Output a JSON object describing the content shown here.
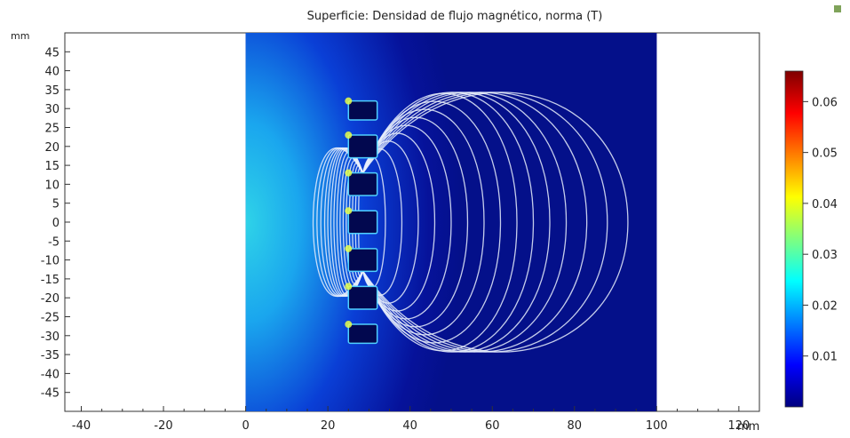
{
  "chart_data": {
    "type": "heatmap",
    "title": "Superficie: Densidad de flujo magnético, norma (T)",
    "xunit": "mm",
    "yunit": "mm",
    "xlim": [
      -44,
      125
    ],
    "ylim": [
      -50,
      50
    ],
    "xticks": [
      -40,
      -20,
      0,
      20,
      40,
      60,
      80,
      100,
      120
    ],
    "yticks": [
      45,
      40,
      35,
      30,
      25,
      20,
      15,
      10,
      5,
      0,
      -5,
      -10,
      -15,
      -20,
      -25,
      -30,
      -35,
      -40,
      -45
    ],
    "domain_x": [
      0,
      100
    ],
    "domain_y": [
      -50,
      50
    ],
    "magnets": [
      {
        "x": [
          25,
          32
        ],
        "y": [
          27,
          32
        ]
      },
      {
        "x": [
          25,
          32
        ],
        "y": [
          17,
          23
        ]
      },
      {
        "x": [
          25,
          32
        ],
        "y": [
          7,
          13
        ]
      },
      {
        "x": [
          25,
          32
        ],
        "y": [
          -3,
          3
        ]
      },
      {
        "x": [
          25,
          32
        ],
        "y": [
          -13,
          -7
        ]
      },
      {
        "x": [
          25,
          32
        ],
        "y": [
          -23,
          -17
        ]
      },
      {
        "x": [
          25,
          32
        ],
        "y": [
          -32,
          -27
        ]
      }
    ],
    "field_lines_x_at_center": [
      34,
      38,
      42,
      46,
      50,
      54,
      58,
      62,
      66,
      70,
      74,
      78,
      83,
      88,
      93
    ],
    "colorbar": {
      "min": 0,
      "max": 0.066,
      "ticks": [
        "0.06",
        "0.05",
        "0.04",
        "0.03",
        "0.02",
        "0.01"
      ],
      "colors": [
        "#00007f",
        "#0000ff",
        "#007fff",
        "#00ffff",
        "#7fff7f",
        "#ffff00",
        "#ff7f00",
        "#ff0000",
        "#7f0000"
      ]
    }
  }
}
